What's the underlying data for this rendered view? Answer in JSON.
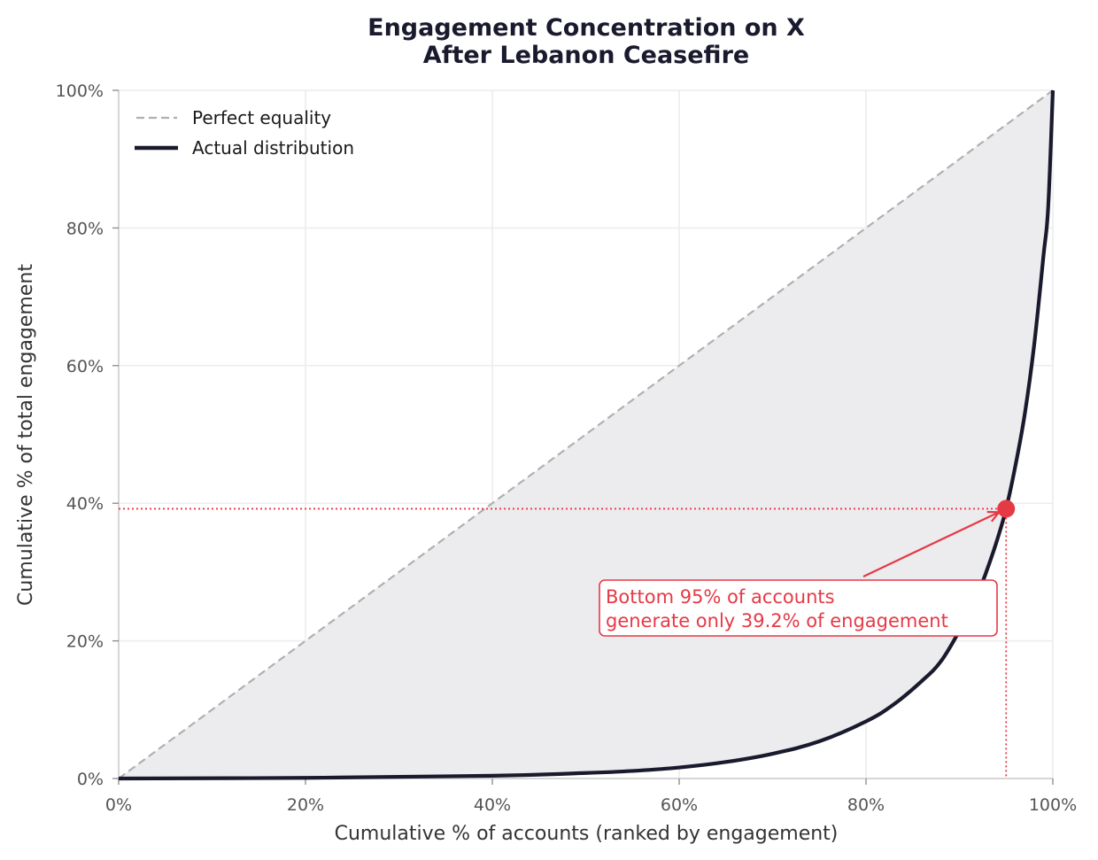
{
  "chart_data": {
    "type": "line",
    "title_lines": [
      "Engagement Concentration on X",
      "After Lebanon Ceasefire"
    ],
    "xlabel": "Cumulative % of accounts (ranked by engagement)",
    "ylabel": "Cumulative % of total engagement",
    "xlim": [
      0,
      100
    ],
    "ylim": [
      0,
      100
    ],
    "x_ticks": [
      "0%",
      "20%",
      "40%",
      "60%",
      "80%",
      "100%"
    ],
    "y_ticks": [
      "0%",
      "20%",
      "40%",
      "60%",
      "80%",
      "100%"
    ],
    "grid": true,
    "legend_position": "top-left",
    "series": [
      {
        "name": "Perfect equality",
        "style": "dashed",
        "color": "#b0b0b0",
        "x": [
          0,
          100
        ],
        "y": [
          0,
          100
        ]
      },
      {
        "name": "Actual distribution",
        "style": "solid",
        "color": "#1a1a2e",
        "x": [
          0,
          20,
          40,
          50,
          55,
          60,
          65,
          70,
          75,
          80,
          83,
          86,
          88,
          90,
          92,
          93,
          94,
          95,
          96,
          97,
          98,
          99,
          99.5,
          100
        ],
        "y": [
          0,
          0.1,
          0.4,
          0.8,
          1.1,
          1.6,
          2.4,
          3.6,
          5.4,
          8.3,
          10.8,
          14.2,
          17.0,
          21.5,
          27.0,
          30.5,
          34.5,
          39.2,
          45.5,
          53.0,
          63.0,
          76.0,
          83.0,
          100
        ]
      }
    ],
    "shaded_region": {
      "between": [
        "Perfect equality",
        "Actual distribution"
      ],
      "color": "#ececef"
    },
    "highlight_point": {
      "x": 95,
      "y": 39.2,
      "color": "#e63946"
    },
    "annotation": {
      "lines": [
        "Bottom 95% of accounts",
        "generate only 39.2% of engagement"
      ],
      "color": "#e63946"
    }
  }
}
